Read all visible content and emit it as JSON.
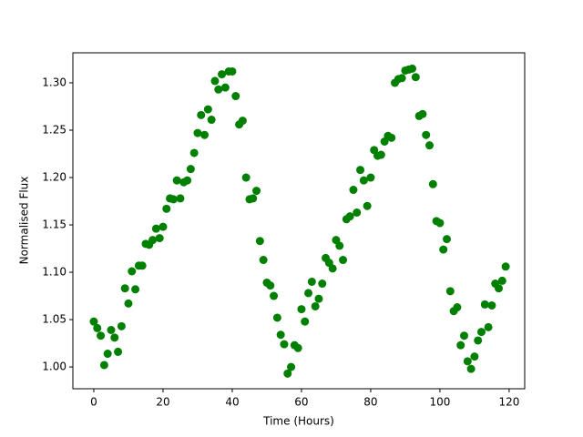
{
  "chart_data": {
    "type": "scatter",
    "x_label": "Time (Hours)",
    "y_label": "Normalised Flux",
    "color": "#008000",
    "xlim": [
      -6.05,
      124.5
    ],
    "ylim": [
      0.977,
      1.3317
    ],
    "xticks": [
      0,
      20,
      40,
      60,
      80,
      100,
      120
    ],
    "yticks": [
      {
        "value": 1,
        "label": "1.00"
      },
      1.05,
      {
        "value": 1.1,
        "label": "1.10"
      },
      1.15,
      {
        "value": 1.2,
        "label": "1.20"
      },
      1.25,
      {
        "value": 1.3,
        "label": "1.30"
      }
    ],
    "grid": false,
    "x": [
      0,
      1,
      2,
      3,
      4,
      5,
      6,
      7,
      8,
      9,
      10,
      11,
      12,
      13,
      14,
      15,
      16,
      17,
      18,
      19,
      20,
      21,
      22,
      23,
      24,
      25,
      26,
      27,
      28,
      29,
      30,
      31,
      32,
      33,
      34,
      35,
      36,
      37,
      38,
      39,
      40,
      41,
      42,
      43,
      44,
      45,
      46,
      47,
      48,
      49,
      50,
      51,
      52,
      53,
      54,
      55,
      56,
      57,
      58,
      59,
      60,
      61,
      62,
      63,
      64,
      65,
      66,
      67,
      68,
      69,
      70,
      71,
      72,
      73,
      74,
      75,
      76,
      77,
      78,
      79,
      80,
      81,
      82,
      83,
      84,
      85,
      86,
      87,
      88,
      89,
      90,
      91,
      92,
      93,
      94,
      95,
      96,
      97,
      98,
      99,
      100,
      101,
      102,
      103,
      104,
      105,
      106,
      107,
      108,
      109,
      110,
      111,
      112,
      113,
      114,
      115,
      116,
      117,
      118,
      119
    ],
    "values": [
      1.048,
      1.041,
      1.033,
      1.002,
      1.014,
      1.039,
      1.031,
      1.016,
      1.043,
      1.083,
      1.067,
      1.101,
      1.082,
      1.107,
      1.107,
      1.13,
      1.129,
      1.134,
      1.146,
      1.136,
      1.148,
      1.167,
      1.178,
      1.177,
      1.197,
      1.178,
      1.195,
      1.197,
      1.209,
      1.226,
      1.247,
      1.266,
      1.245,
      1.272,
      1.261,
      1.302,
      1.293,
      1.309,
      1.295,
      1.312,
      1.312,
      1.286,
      1.256,
      1.26,
      1.2,
      1.177,
      1.178,
      1.186,
      1.133,
      1.113,
      1.089,
      1.086,
      1.075,
      1.052,
      1.034,
      1.024,
      0.993,
      1.0,
      1.023,
      1.02,
      1.061,
      1.048,
      1.078,
      1.09,
      1.064,
      1.072,
      1.088,
      1.115,
      1.11,
      1.104,
      1.134,
      1.128,
      1.113,
      1.156,
      1.159,
      1.187,
      1.163,
      1.208,
      1.197,
      1.17,
      1.2,
      1.229,
      1.223,
      1.224,
      1.238,
      1.244,
      1.242,
      1.3,
      1.304,
      1.305,
      1.313,
      1.314,
      1.315,
      1.306,
      1.265,
      1.267,
      1.245,
      1.234,
      1.193,
      1.154,
      1.152,
      1.124,
      1.135,
      1.08,
      1.059,
      1.063,
      1.023,
      1.033,
      1.006,
      0.998,
      1.011,
      1.028,
      1.037,
      1.066,
      1.042,
      1.065,
      1.088,
      1.083,
      1.091,
      1.106
    ]
  }
}
